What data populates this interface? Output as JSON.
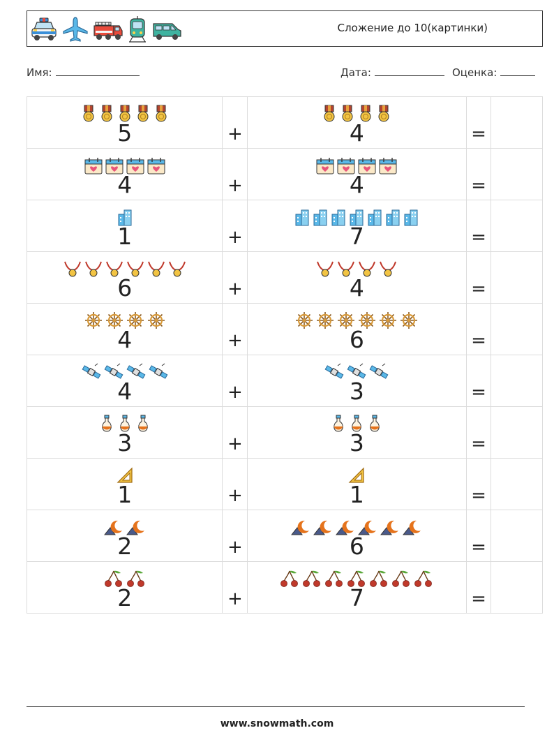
{
  "header": {
    "title": "Сложение до 10(картинки)",
    "icons": [
      "police-car",
      "airplane",
      "fire-truck",
      "tram",
      "van"
    ]
  },
  "meta": {
    "name_label": "Имя:",
    "date_label": "Дата:",
    "grade_label": "Оценка:"
  },
  "problems": [
    {
      "a": "5",
      "b": "4",
      "icon": "medal",
      "plus": "+",
      "equals": "="
    },
    {
      "a": "4",
      "b": "4",
      "icon": "calendar-heart",
      "plus": "+",
      "equals": "="
    },
    {
      "a": "1",
      "b": "7",
      "icon": "buildings",
      "plus": "+",
      "equals": "="
    },
    {
      "a": "6",
      "b": "4",
      "icon": "medal-necklace",
      "plus": "+",
      "equals": "="
    },
    {
      "a": "4",
      "b": "6",
      "icon": "ship-wheel",
      "plus": "+",
      "equals": "="
    },
    {
      "a": "4",
      "b": "3",
      "icon": "satellite",
      "plus": "+",
      "equals": "="
    },
    {
      "a": "3",
      "b": "3",
      "icon": "potion-flask",
      "plus": "+",
      "equals": "="
    },
    {
      "a": "1",
      "b": "1",
      "icon": "set-square-ruler",
      "plus": "+",
      "equals": "="
    },
    {
      "a": "2",
      "b": "6",
      "icon": "night-moon",
      "plus": "+",
      "equals": "="
    },
    {
      "a": "2",
      "b": "7",
      "icon": "cherries",
      "plus": "+",
      "equals": "="
    }
  ],
  "footer": {
    "text": "www.snowmath.com"
  }
}
